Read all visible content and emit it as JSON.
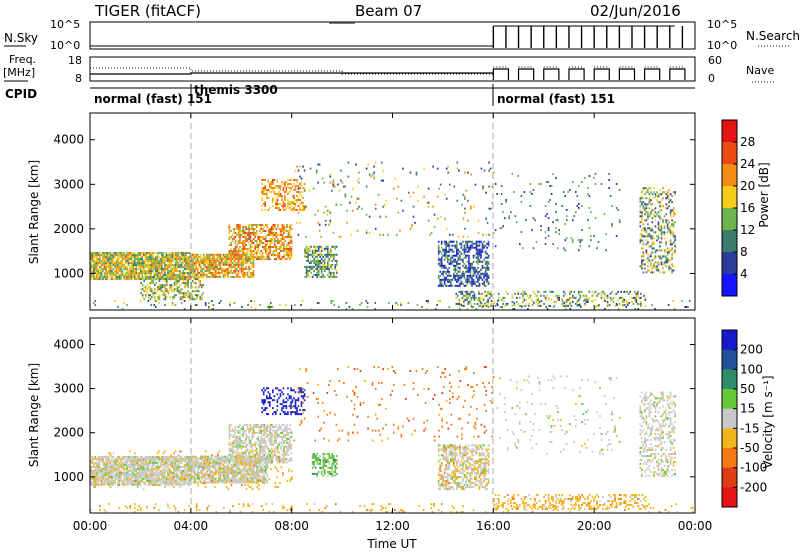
{
  "header": {
    "radar": "TIGER (fitACF)",
    "beam": "Beam 07",
    "date": "02/Jun/2016"
  },
  "top_panel": {
    "nsky_label": "N.Sky",
    "nsearch_label": "N.Search",
    "freq_label": "Freq.",
    "freq_unit": "[MHz]",
    "nave_label": "Nave",
    "cpid_label": "CPID",
    "noise_ticks_left": [
      "10^5",
      "10^0"
    ],
    "noise_ticks_right": [
      "10^5",
      "10^0"
    ],
    "freq_ticks": [
      "18",
      "8"
    ],
    "nave_ticks": [
      "60",
      "0"
    ],
    "cpid_segments": [
      {
        "text": "normal (fast) 151",
        "start_hour": 0,
        "end_hour": 4
      },
      {
        "text": "themis 3300",
        "start_hour": 4,
        "end_hour": 16
      },
      {
        "text": "normal (fast) 151",
        "start_hour": 16,
        "end_hour": 24
      }
    ]
  },
  "chart_data": [
    {
      "type": "heatmap",
      "name": "power-panel",
      "xlabel": "Time UT",
      "ylabel": "Slant Range [km]",
      "x_ticks": [
        "00:00",
        "04:00",
        "08:00",
        "12:00",
        "16:00",
        "20:00",
        "00:00"
      ],
      "xlim_hours": [
        0,
        24
      ],
      "y_ticks": [
        "1000",
        "2000",
        "3000",
        "4000"
      ],
      "ylim": [
        180,
        4600
      ],
      "colorbar_label": "Power [dB]",
      "colorbar_ticks": [
        "4",
        "8",
        "12",
        "16",
        "20",
        "24",
        "28"
      ],
      "colorbar_range": [
        0,
        32
      ],
      "colorbar_colors": [
        "#1414ff",
        "#2c3c9c",
        "#3c7c6c",
        "#6cb44c",
        "#f4cc1c",
        "#f48c14",
        "#ec4c14",
        "#e41414"
      ],
      "regions": [
        {
          "t0": 0.0,
          "t1": 4.0,
          "r0": 850,
          "r1": 1450,
          "density": 0.85,
          "v0": 10,
          "v1": 24
        },
        {
          "t0": 4.0,
          "t1": 6.5,
          "r0": 900,
          "r1": 1400,
          "density": 0.8,
          "v0": 12,
          "v1": 26
        },
        {
          "t0": 5.5,
          "t1": 8.0,
          "r0": 1300,
          "r1": 2100,
          "density": 0.6,
          "v0": 14,
          "v1": 28
        },
        {
          "t0": 6.8,
          "t1": 8.5,
          "r0": 2400,
          "r1": 3100,
          "density": 0.4,
          "v0": 16,
          "v1": 26
        },
        {
          "t0": 2.0,
          "t1": 4.5,
          "r0": 400,
          "r1": 900,
          "density": 0.5,
          "v0": 8,
          "v1": 22
        },
        {
          "t0": 8.5,
          "t1": 9.8,
          "r0": 900,
          "r1": 1600,
          "density": 0.55,
          "v0": 6,
          "v1": 18
        },
        {
          "t0": 13.8,
          "t1": 15.8,
          "r0": 700,
          "r1": 1700,
          "density": 0.55,
          "v0": 2,
          "v1": 14
        },
        {
          "t0": 14.5,
          "t1": 15.9,
          "r0": 250,
          "r1": 600,
          "density": 0.45,
          "v0": 4,
          "v1": 20
        },
        {
          "t0": 16.0,
          "t1": 22.0,
          "r0": 250,
          "r1": 600,
          "density": 0.3,
          "v0": 6,
          "v1": 20
        },
        {
          "t0": 21.8,
          "t1": 23.2,
          "r0": 1000,
          "r1": 2900,
          "density": 0.35,
          "v0": 4,
          "v1": 22
        },
        {
          "t0": 0.0,
          "t1": 24.0,
          "r0": 180,
          "r1": 400,
          "density": 0.08,
          "v0": 4,
          "v1": 20
        },
        {
          "t0": 8.0,
          "t1": 16.0,
          "r0": 1800,
          "r1": 3500,
          "density": 0.04,
          "v0": 4,
          "v1": 24
        },
        {
          "t0": 16.0,
          "t1": 21.0,
          "r0": 1500,
          "r1": 3300,
          "density": 0.04,
          "v0": 4,
          "v1": 16
        }
      ]
    },
    {
      "type": "heatmap",
      "name": "velocity-panel",
      "xlabel": "Time UT",
      "ylabel": "Slant Range [km]",
      "x_ticks": [
        "00:00",
        "04:00",
        "08:00",
        "12:00",
        "16:00",
        "20:00",
        "00:00"
      ],
      "xlim_hours": [
        0,
        24
      ],
      "y_ticks": [
        "1000",
        "2000",
        "3000",
        "4000"
      ],
      "ylim": [
        180,
        4600
      ],
      "colorbar_label": "Velocity [m s⁻¹]",
      "colorbar_ticks": [
        "200",
        "100",
        "50",
        "15",
        "-15",
        "-50",
        "-100",
        "-200"
      ],
      "colorbar_colors": [
        "#1818cc",
        "#24509c",
        "#2c8c6c",
        "#64c838",
        "#c8c8c8",
        "#f0b41c",
        "#f47814",
        "#e03c14",
        "#e41414"
      ],
      "regions": [
        {
          "t0": 0.0,
          "t1": 4.0,
          "r0": 800,
          "r1": 1450,
          "density": 0.85,
          "c": 4
        },
        {
          "t0": 4.0,
          "t1": 7.0,
          "r0": 850,
          "r1": 1450,
          "density": 0.8,
          "c": 4
        },
        {
          "t0": 5.5,
          "t1": 8.0,
          "r0": 1300,
          "r1": 2200,
          "density": 0.6,
          "c": 4
        },
        {
          "t0": 0.0,
          "t1": 8.0,
          "r0": 700,
          "r1": 1600,
          "density": 0.1,
          "c": 5
        },
        {
          "t0": 6.8,
          "t1": 8.5,
          "r0": 2400,
          "r1": 3000,
          "density": 0.4,
          "c": 0
        },
        {
          "t0": 8.8,
          "t1": 9.8,
          "r0": 1000,
          "r1": 1500,
          "density": 0.55,
          "c": 3
        },
        {
          "t0": 13.8,
          "t1": 15.8,
          "r0": 700,
          "r1": 1700,
          "density": 0.5,
          "c": 4
        },
        {
          "t0": 13.8,
          "t1": 15.8,
          "r0": 700,
          "r1": 1700,
          "density": 0.15,
          "c": 5
        },
        {
          "t0": 16.0,
          "t1": 22.0,
          "r0": 250,
          "r1": 600,
          "density": 0.3,
          "c": 5
        },
        {
          "t0": 21.8,
          "t1": 23.2,
          "r0": 1000,
          "r1": 2900,
          "density": 0.35,
          "c": 4
        },
        {
          "t0": 0.0,
          "t1": 24.0,
          "r0": 180,
          "r1": 400,
          "density": 0.08,
          "c": 5
        },
        {
          "t0": 8.0,
          "t1": 16.0,
          "r0": 1800,
          "r1": 3500,
          "density": 0.04,
          "c": 6
        },
        {
          "t0": 16.0,
          "t1": 21.0,
          "r0": 1500,
          "r1": 3300,
          "density": 0.04,
          "c": 4
        }
      ]
    }
  ]
}
